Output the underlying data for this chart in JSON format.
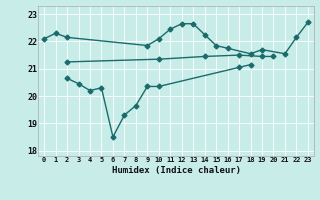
{
  "xlabel": "Humidex (Indice chaleur)",
  "bg_color": "#c8ece8",
  "line_color": "#1a6b6b",
  "grid_color": "#b0d8d4",
  "xlim": [
    -0.5,
    23.5
  ],
  "ylim": [
    17.8,
    23.3
  ],
  "yticks": [
    18,
    19,
    20,
    21,
    22,
    23
  ],
  "xticks": [
    0,
    1,
    2,
    3,
    4,
    5,
    6,
    7,
    8,
    9,
    10,
    11,
    12,
    13,
    14,
    15,
    16,
    17,
    18,
    19,
    20,
    21,
    22,
    23
  ],
  "line1_x": [
    0,
    1,
    2,
    9,
    10,
    11,
    12,
    13,
    14,
    15,
    16,
    18,
    19,
    21,
    22,
    23
  ],
  "line1_y": [
    22.1,
    22.3,
    22.15,
    21.85,
    22.1,
    22.45,
    22.65,
    22.65,
    22.25,
    21.85,
    21.75,
    21.55,
    21.7,
    21.55,
    22.15,
    22.7
  ],
  "line2_x": [
    2,
    10,
    14,
    17,
    19,
    20
  ],
  "line2_y": [
    21.25,
    21.35,
    21.45,
    21.5,
    21.45,
    21.45
  ],
  "line3_x": [
    2,
    3,
    4,
    5,
    6,
    7,
    8,
    9,
    10,
    17,
    18
  ],
  "line3_y": [
    20.65,
    20.45,
    20.2,
    20.3,
    18.5,
    19.3,
    19.65,
    20.35,
    20.35,
    21.05,
    21.15
  ],
  "marker": "D",
  "markersize": 2.5,
  "linewidth": 1.0
}
